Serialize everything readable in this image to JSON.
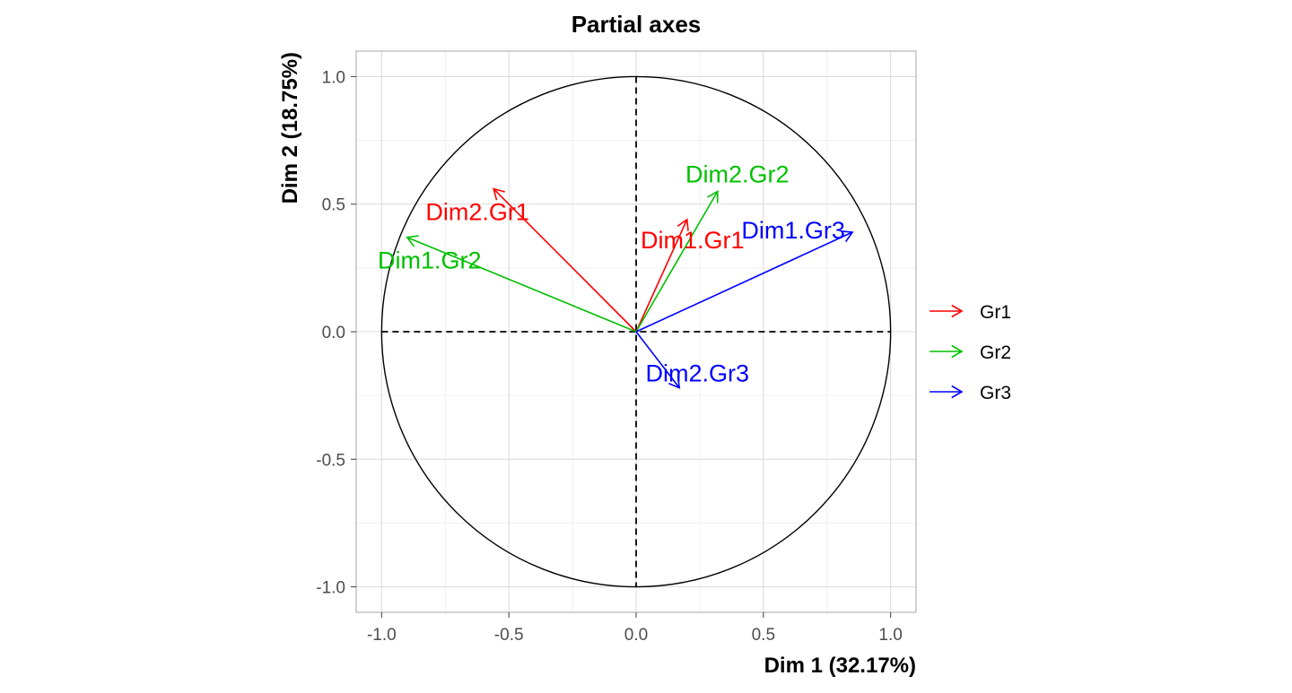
{
  "chart_data": {
    "type": "scatter",
    "title": "Partial axes",
    "xlabel": "Dim 1 (32.17%)",
    "ylabel": "Dim 2 (18.75%)",
    "xlim": [
      -1.1,
      1.1
    ],
    "ylim": [
      -1.1,
      1.1
    ],
    "xticks": [
      -1.0,
      -0.5,
      0.0,
      0.5,
      1.0
    ],
    "yticks": [
      -1.0,
      -0.5,
      0.0,
      0.5,
      1.0
    ],
    "xtick_labels": [
      "-1.0",
      "-0.5",
      "0.0",
      "0.5",
      "1.0"
    ],
    "ytick_labels": [
      "-1.0",
      "-0.5",
      "0.0",
      "0.5",
      "1.0"
    ],
    "grid": true,
    "unit_circle": true,
    "zero_reference_lines": "dashed",
    "legend": {
      "position": "right",
      "entries": [
        "Gr1",
        "Gr2",
        "Gr3"
      ]
    },
    "series": [
      {
        "name": "Gr1",
        "color": "#ff0000",
        "arrows": [
          {
            "label": "Dim1.Gr1",
            "x": 0.2,
            "y": 0.44
          },
          {
            "label": "Dim2.Gr1",
            "x": -0.56,
            "y": 0.56
          }
        ]
      },
      {
        "name": "Gr2",
        "color": "#00c000",
        "arrows": [
          {
            "label": "Dim1.Gr2",
            "x": -0.9,
            "y": 0.37
          },
          {
            "label": "Dim2.Gr2",
            "x": 0.32,
            "y": 0.55
          }
        ]
      },
      {
        "name": "Gr3",
        "color": "#0000ff",
        "arrows": [
          {
            "label": "Dim1.Gr3",
            "x": 0.85,
            "y": 0.39
          },
          {
            "label": "Dim2.Gr3",
            "x": 0.17,
            "y": -0.22
          }
        ]
      }
    ]
  }
}
